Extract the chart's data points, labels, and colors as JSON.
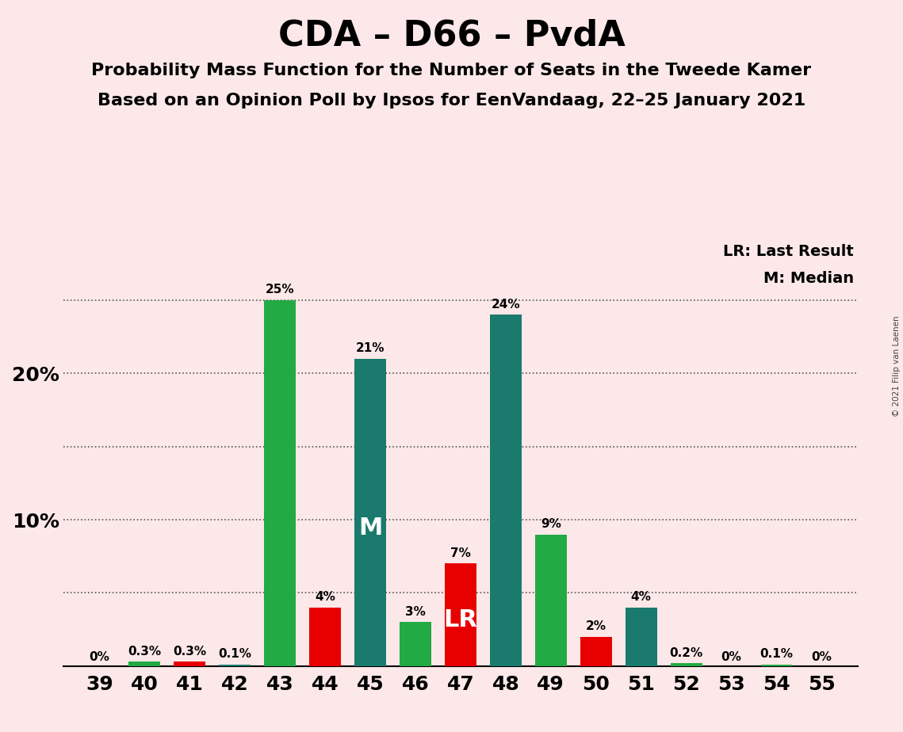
{
  "title": "CDA – D66 – PvdA",
  "subtitle1": "Probability Mass Function for the Number of Seats in the Tweede Kamer",
  "subtitle2": "Based on an Opinion Poll by Ipsos for EenVandaag, 22–25 January 2021",
  "copyright": "© 2021 Filip van Laenen",
  "legend_lr": "LR: Last Result",
  "legend_m": "M: Median",
  "seats": [
    39,
    40,
    41,
    42,
    43,
    44,
    45,
    46,
    47,
    48,
    49,
    50,
    51,
    52,
    53,
    54,
    55
  ],
  "values": [
    0.0,
    0.3,
    0.3,
    0.1,
    25.0,
    4.0,
    21.0,
    3.0,
    7.0,
    24.0,
    9.0,
    2.0,
    4.0,
    0.2,
    0.0,
    0.1,
    0.0
  ],
  "bar_colors": [
    "#22aa44",
    "#22aa44",
    "#e80000",
    "#1a7a6e",
    "#22aa44",
    "#e80000",
    "#1a7a6e",
    "#22aa44",
    "#e80000",
    "#1a7a6e",
    "#22aa44",
    "#e80000",
    "#1a7a6e",
    "#22aa44",
    "#22aa44",
    "#22aa44",
    "#22aa44"
  ],
  "labels": [
    "0%",
    "0.3%",
    "0.3%",
    "0.1%",
    "25%",
    "4%",
    "21%",
    "3%",
    "7%",
    "24%",
    "9%",
    "2%",
    "4%",
    "0.2%",
    "0%",
    "0.1%",
    "0%"
  ],
  "median_seat": 45,
  "lr_seat": 47,
  "background_color": "#fce8e8",
  "title_fontsize": 32,
  "subtitle_fontsize": 16
}
